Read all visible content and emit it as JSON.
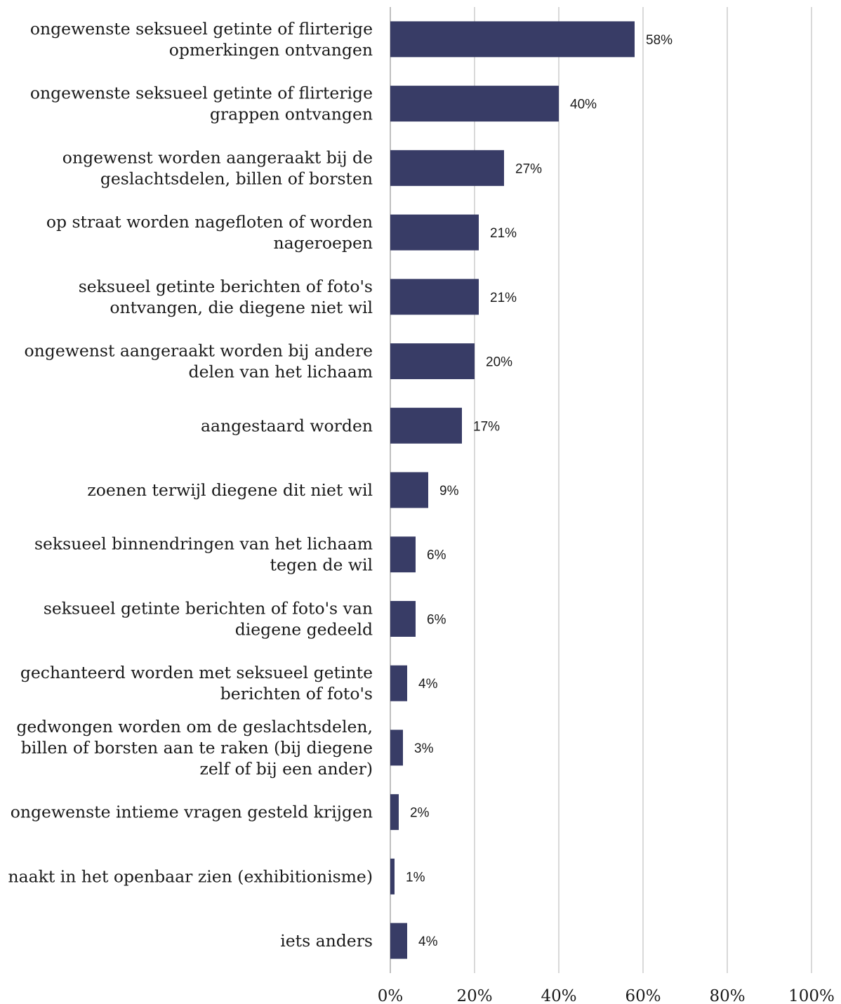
{
  "chart_data": {
    "type": "bar",
    "orientation": "horizontal",
    "categories": [
      [
        "ongewenste seksueel getinte of flirterige",
        "opmerkingen ontvangen"
      ],
      [
        "ongewenste seksueel getinte of flirterige",
        "grappen ontvangen"
      ],
      [
        "ongewenst worden aangeraakt bij de",
        "geslachtsdelen, billen of borsten"
      ],
      [
        "op straat worden nagefloten of worden",
        "nageroepen"
      ],
      [
        "seksueel getinte berichten of foto's",
        "ontvangen, die diegene niet wil"
      ],
      [
        "ongewenst aangeraakt worden bij andere",
        "delen van het lichaam"
      ],
      [
        "aangestaard worden"
      ],
      [
        "zoenen terwijl diegene dit niet wil"
      ],
      [
        "seksueel binnendringen van het lichaam",
        "tegen de wil"
      ],
      [
        "seksueel getinte berichten of foto's van",
        "diegene gedeeld"
      ],
      [
        "gechanteerd worden met seksueel getinte",
        "berichten  of foto's"
      ],
      [
        "gedwongen worden om de geslachtsdelen,",
        "billen of borsten aan te raken (bij diegene",
        "zelf of bij een ander)"
      ],
      [
        "ongewenste intieme vragen gesteld krijgen"
      ],
      [
        "naakt in het openbaar zien (exhibitionisme)"
      ],
      [
        "iets anders"
      ]
    ],
    "values": [
      58,
      40,
      27,
      21,
      21,
      20,
      17,
      9,
      6,
      6,
      4,
      3,
      2,
      1,
      4
    ],
    "data_labels": [
      "58%",
      "40%",
      "27%",
      "21%",
      "21%",
      "20%",
      "17%",
      "9%",
      "6%",
      "6%",
      "4%",
      "3%",
      "2%",
      "1%",
      "4%"
    ],
    "xlim": [
      0,
      100
    ],
    "x_ticks": [
      0,
      20,
      40,
      60,
      80,
      100
    ],
    "x_tick_labels": [
      "0%",
      "20%",
      "40%",
      "60%",
      "80%",
      "100%"
    ],
    "grid": "vertical",
    "legend": "none",
    "bar_color": "#383c66",
    "grid_color": "#d9d9d9"
  }
}
